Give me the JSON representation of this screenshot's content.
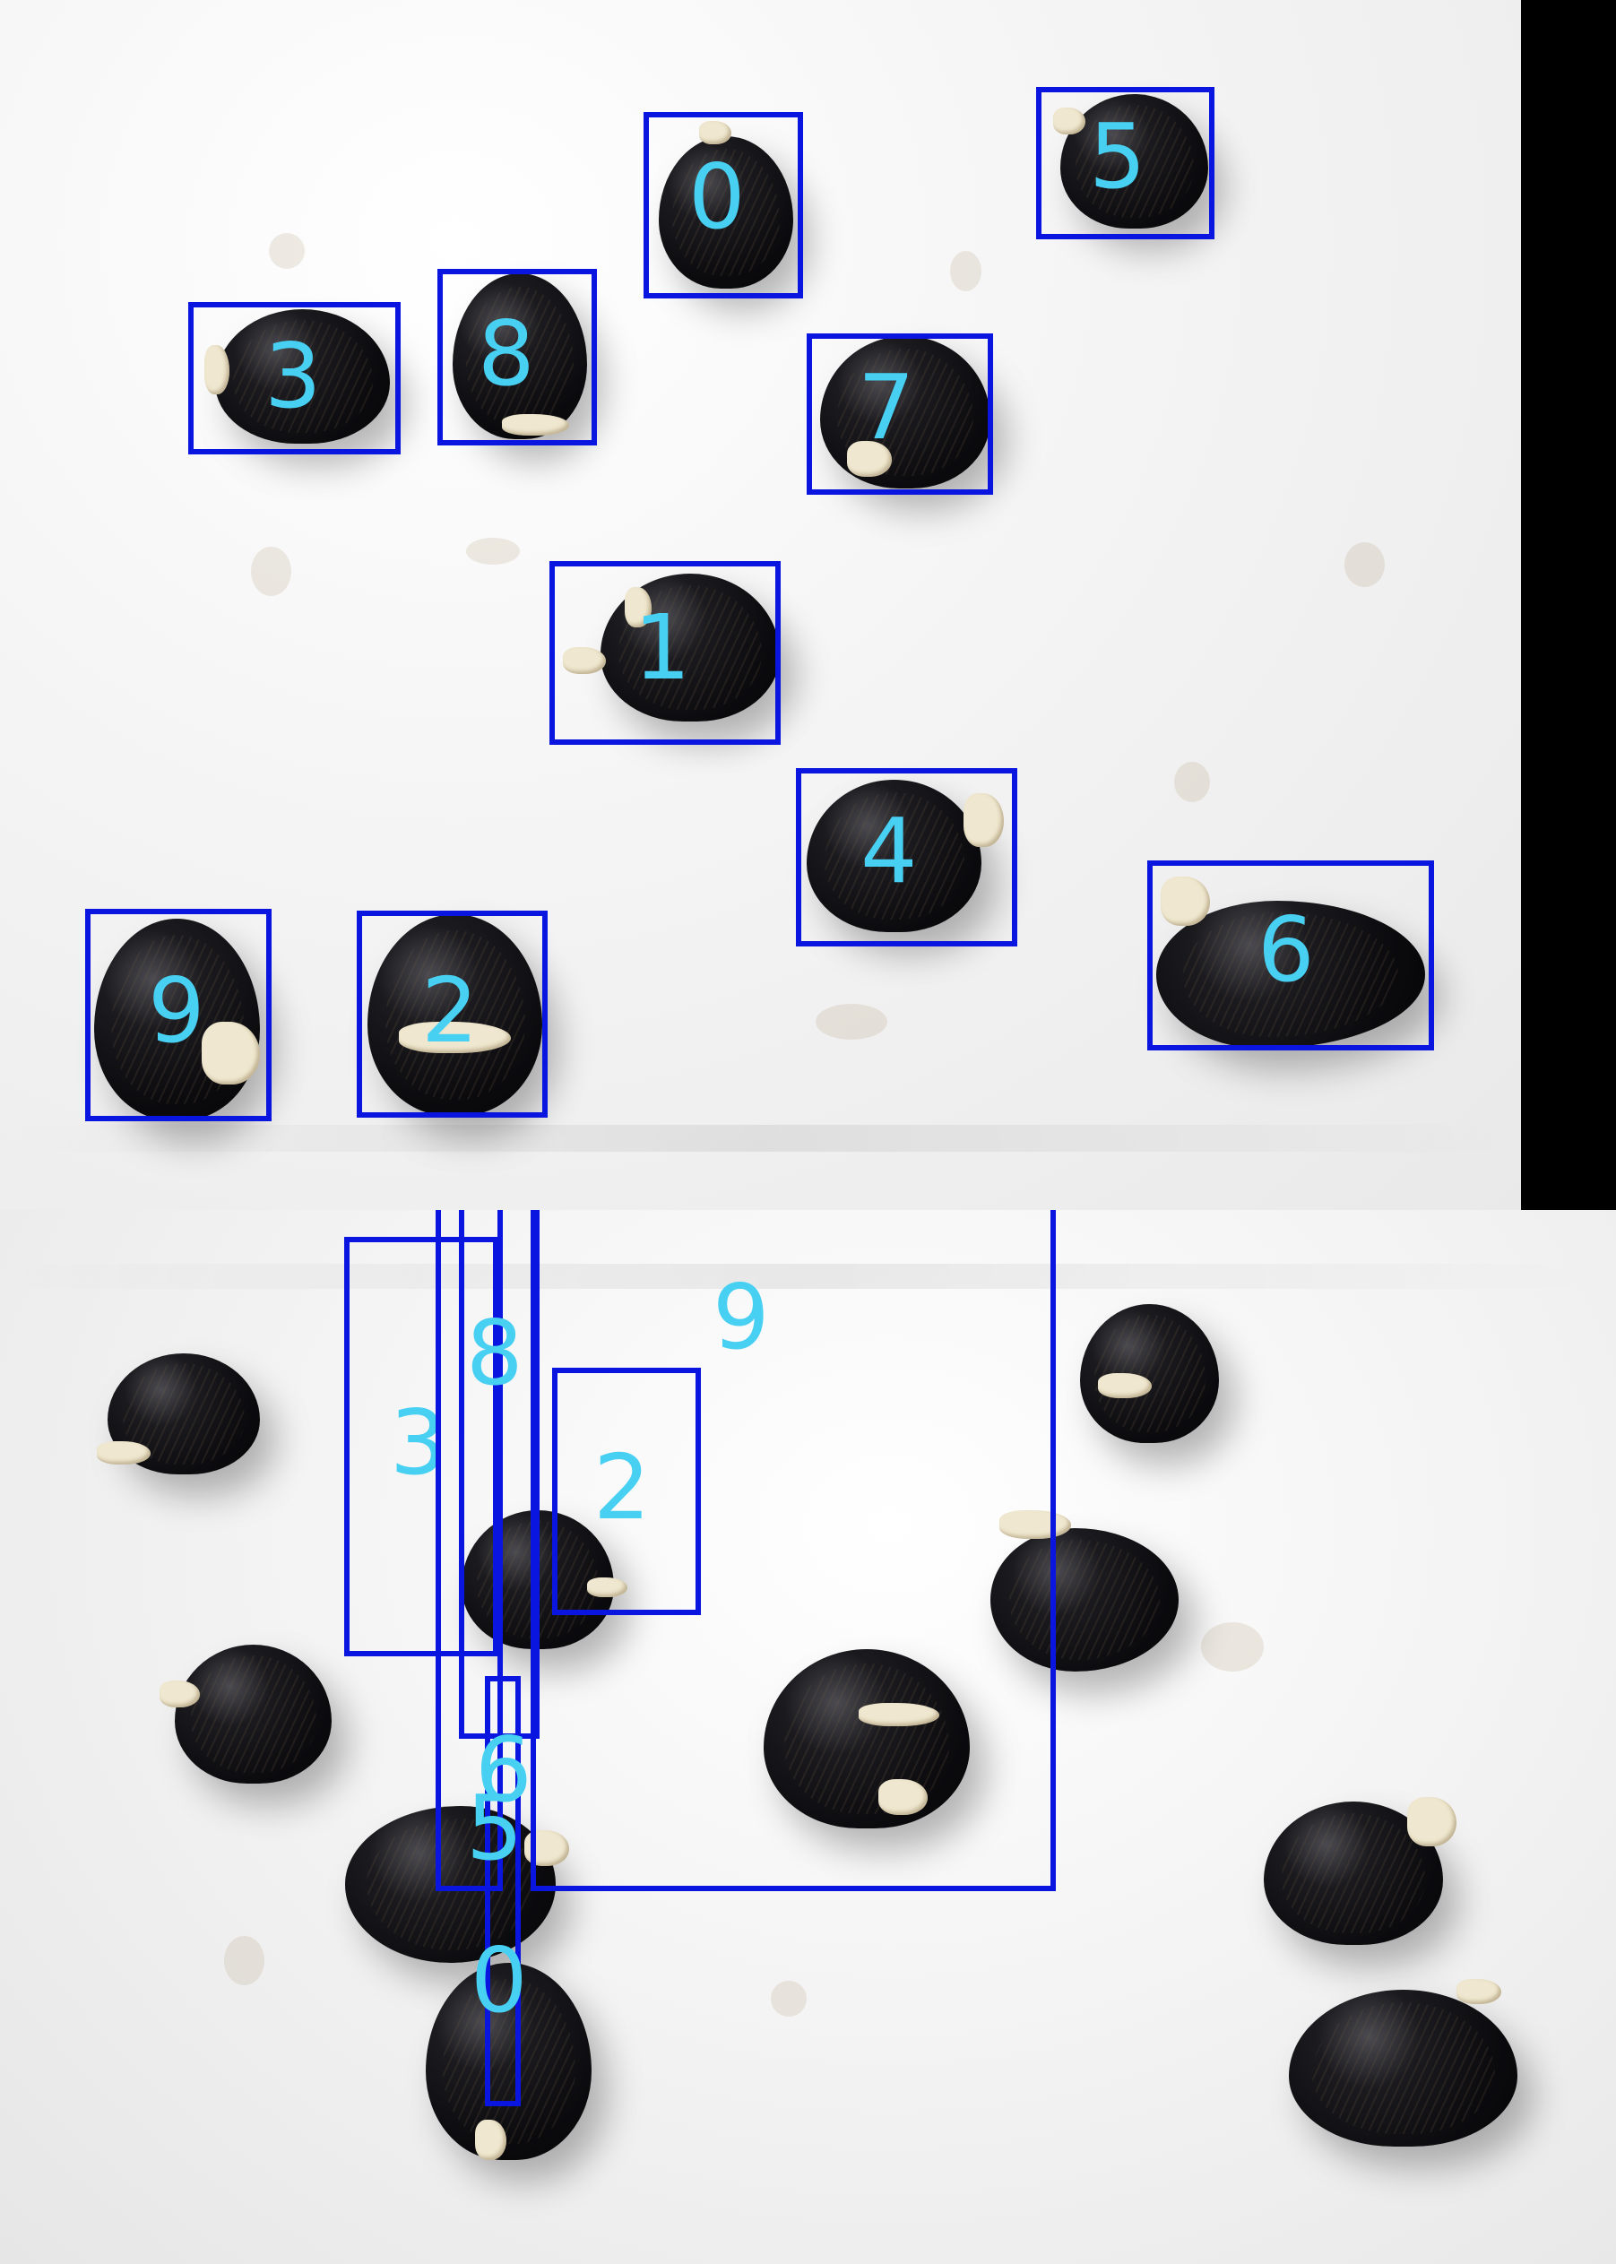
{
  "top_panel": {
    "detections": [
      {
        "label": "0"
      },
      {
        "label": "1"
      },
      {
        "label": "2"
      },
      {
        "label": "3"
      },
      {
        "label": "4"
      },
      {
        "label": "5"
      },
      {
        "label": "6"
      },
      {
        "label": "7"
      },
      {
        "label": "8"
      },
      {
        "label": "9"
      }
    ]
  },
  "bottom_panel": {
    "detections": [
      {
        "label": "0"
      },
      {
        "label": "2"
      },
      {
        "label": "3"
      },
      {
        "label": "5"
      },
      {
        "label": "6"
      },
      {
        "label": "8"
      },
      {
        "label": "9"
      }
    ]
  },
  "colors": {
    "box": "#0a16e0",
    "label": "#48d0f2",
    "background": "#f2f2f2",
    "seed": "#0b0b0e"
  }
}
